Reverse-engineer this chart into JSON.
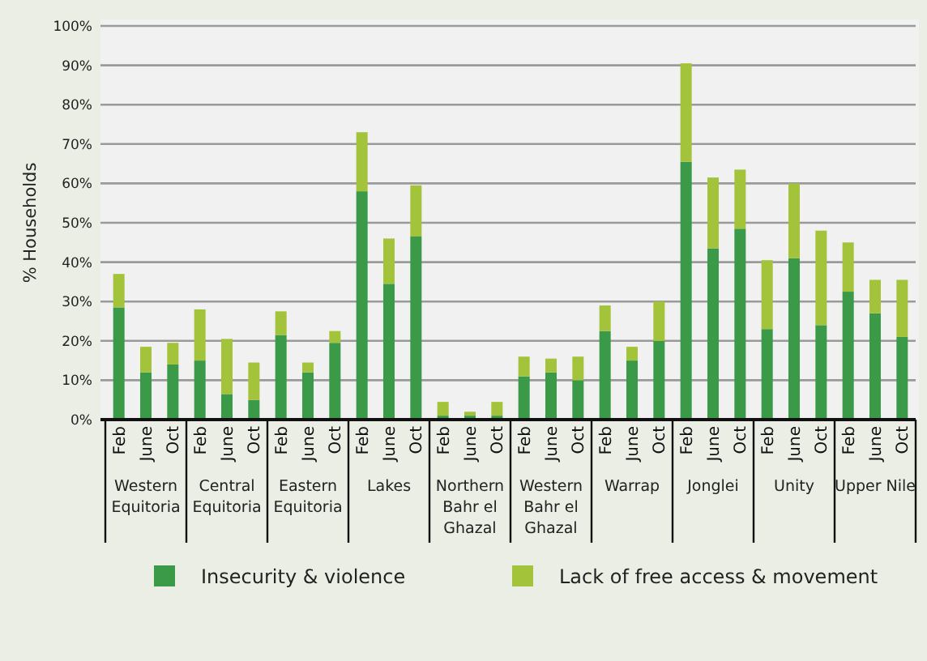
{
  "chart_data": {
    "type": "bar",
    "stacked": true,
    "ylabel": "% Households",
    "categories": [
      "Feb",
      "June",
      "Oct",
      "Feb",
      "June",
      "Oct",
      "Feb",
      "June",
      "Oct",
      "Feb",
      "June",
      "Oct",
      "Feb",
      "June",
      "Oct",
      "Feb",
      "June",
      "Oct",
      "Feb",
      "June",
      "Oct",
      "Feb",
      "June",
      "Oct",
      "Feb",
      "June",
      "Oct",
      "Feb",
      "June",
      "Oct"
    ],
    "annotations": [
      "Western Equitoria",
      "Central Equitoria",
      "Eastern Equitoria",
      "Lakes",
      "Northern Bahr el Ghazal",
      "Western Bahr el Ghazal",
      "Warrap",
      "Jonglei",
      "Unity",
      "Upper Nile"
    ],
    "series": [
      {
        "name": "Insecurity & violence",
        "color": "#3a9a48",
        "values": [
          28.5,
          12,
          14,
          15,
          6.5,
          5,
          21.5,
          12,
          19.5,
          58,
          34.5,
          46.5,
          1,
          1,
          1,
          11,
          12,
          10,
          22.5,
          15,
          20,
          65.5,
          43.5,
          48.5,
          23,
          41,
          24,
          32.5,
          27,
          21
        ]
      },
      {
        "name": "Lack of free access & movement",
        "color": "#a3c43a",
        "values": [
          8.5,
          6.5,
          5.5,
          13,
          14,
          9.5,
          6,
          2.5,
          3,
          15,
          11.5,
          13,
          3.5,
          1,
          3.5,
          5,
          3.5,
          6,
          6.5,
          3.5,
          10,
          25,
          18,
          15,
          17.5,
          19,
          24,
          12.5,
          8.5,
          14.5
        ]
      }
    ],
    "ylim": [
      0,
      100
    ],
    "yticks": [
      {
        "value": 0,
        "label": "0%"
      },
      {
        "value": 10,
        "label": "10%"
      },
      {
        "value": 20,
        "label": "20%"
      },
      {
        "value": 30,
        "label": "30%"
      },
      {
        "value": 40,
        "label": "40%"
      },
      {
        "value": 50,
        "label": "50%"
      },
      {
        "value": 60,
        "label": "60%"
      },
      {
        "value": 70,
        "label": "70%"
      },
      {
        "value": 80,
        "label": "80%"
      },
      {
        "value": 90,
        "label": "90%"
      },
      {
        "value": 100,
        "label": "100%"
      }
    ],
    "grid": "y",
    "legend": "bottom"
  }
}
